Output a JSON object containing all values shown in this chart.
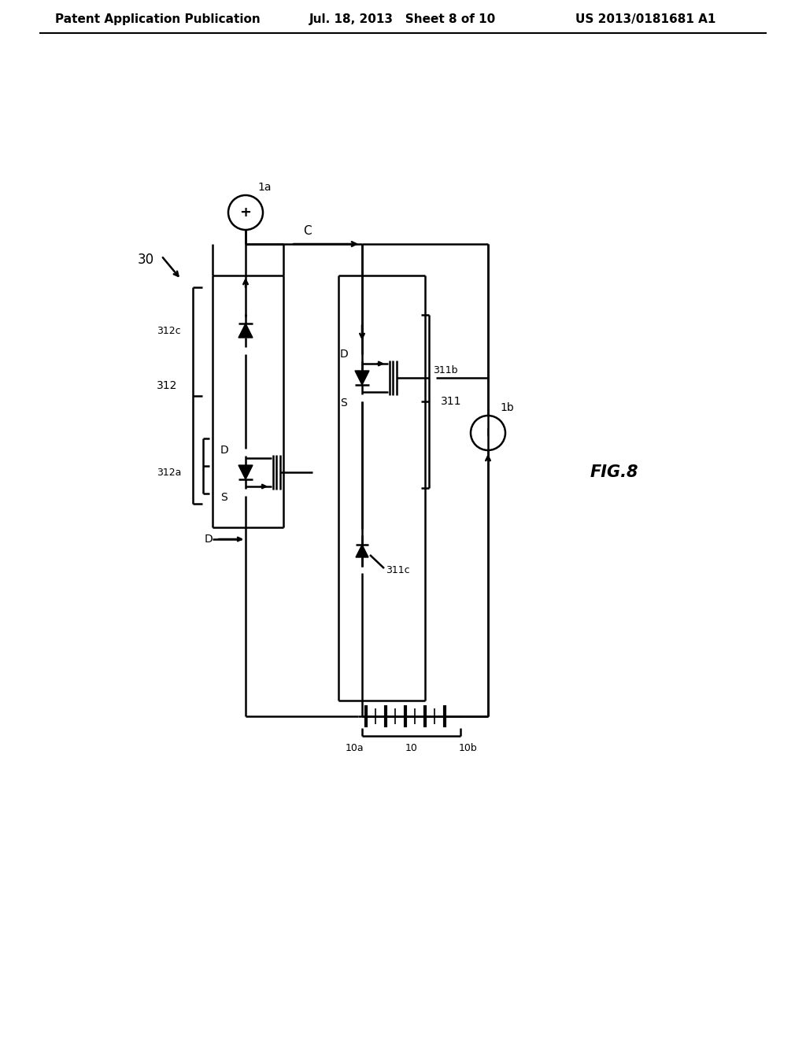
{
  "bg_color": "#ffffff",
  "line_color": "#000000",
  "header_left": "Patent Application Publication",
  "header_center": "Jul. 18, 2013   Sheet 8 of 10",
  "header_right": "US 2013/0181681 A1",
  "fig_label": "FIG.8",
  "label_30": "30",
  "label_1a": "1a",
  "label_1b": "1b",
  "label_C": "C",
  "label_D_left": "D",
  "label_S_left": "S",
  "label_D_right": "D",
  "label_S_right": "S",
  "label_312": "312",
  "label_312a": "312a",
  "label_312c": "312c",
  "label_311": "311",
  "label_311b": "311b",
  "label_311c": "311c",
  "label_10": "10",
  "label_10a": "10a",
  "label_10b": "10b"
}
